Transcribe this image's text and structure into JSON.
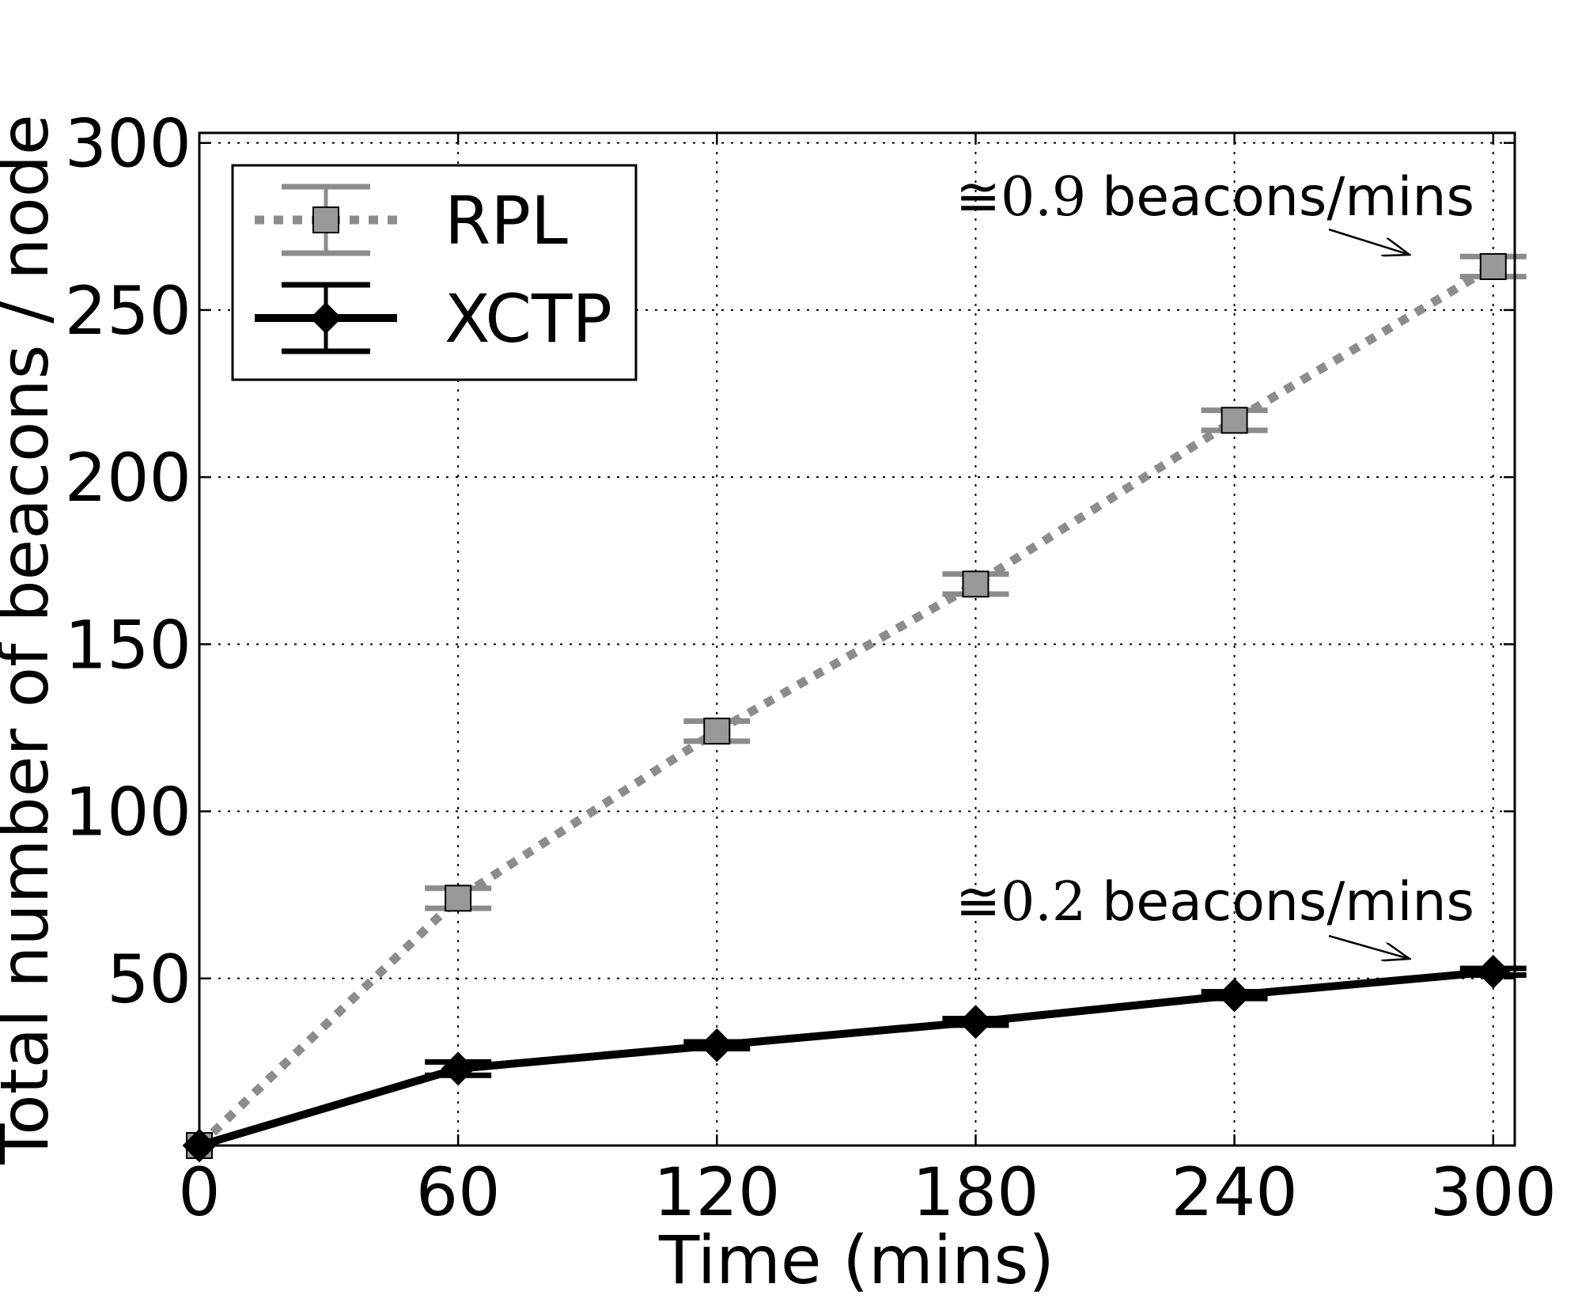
{
  "chart_data": {
    "type": "line",
    "title": "",
    "xlabel": "Time (mins)",
    "ylabel": "Total number of beacons / node",
    "xlim": [
      0,
      305
    ],
    "ylim": [
      0,
      303
    ],
    "xticks": [
      0,
      60,
      120,
      180,
      240,
      300
    ],
    "yticks": [
      50,
      100,
      150,
      200,
      250,
      300
    ],
    "grid": true,
    "legend_position": "top-left",
    "x": [
      0,
      60,
      120,
      180,
      240,
      300
    ],
    "series": [
      {
        "name": "RPL",
        "color": "#8c8c8c",
        "line_style": "dotted",
        "marker": "square",
        "values": [
          0,
          74,
          124,
          168,
          217,
          263
        ],
        "error": [
          0,
          3,
          3,
          3,
          3,
          3
        ]
      },
      {
        "name": "XCTP",
        "color": "#000000",
        "line_style": "solid",
        "marker": "diamond",
        "values": [
          0,
          23,
          30,
          37,
          45,
          52
        ],
        "error": [
          0,
          2,
          1,
          1,
          1,
          1
        ]
      }
    ],
    "annotations": [
      {
        "symbol": "≅",
        "rate": "0.9",
        "text": "beacons/mins",
        "target_series": "RPL"
      },
      {
        "symbol": "≅",
        "rate": "0.2",
        "text": "beacons/mins",
        "target_series": "XCTP"
      }
    ]
  }
}
